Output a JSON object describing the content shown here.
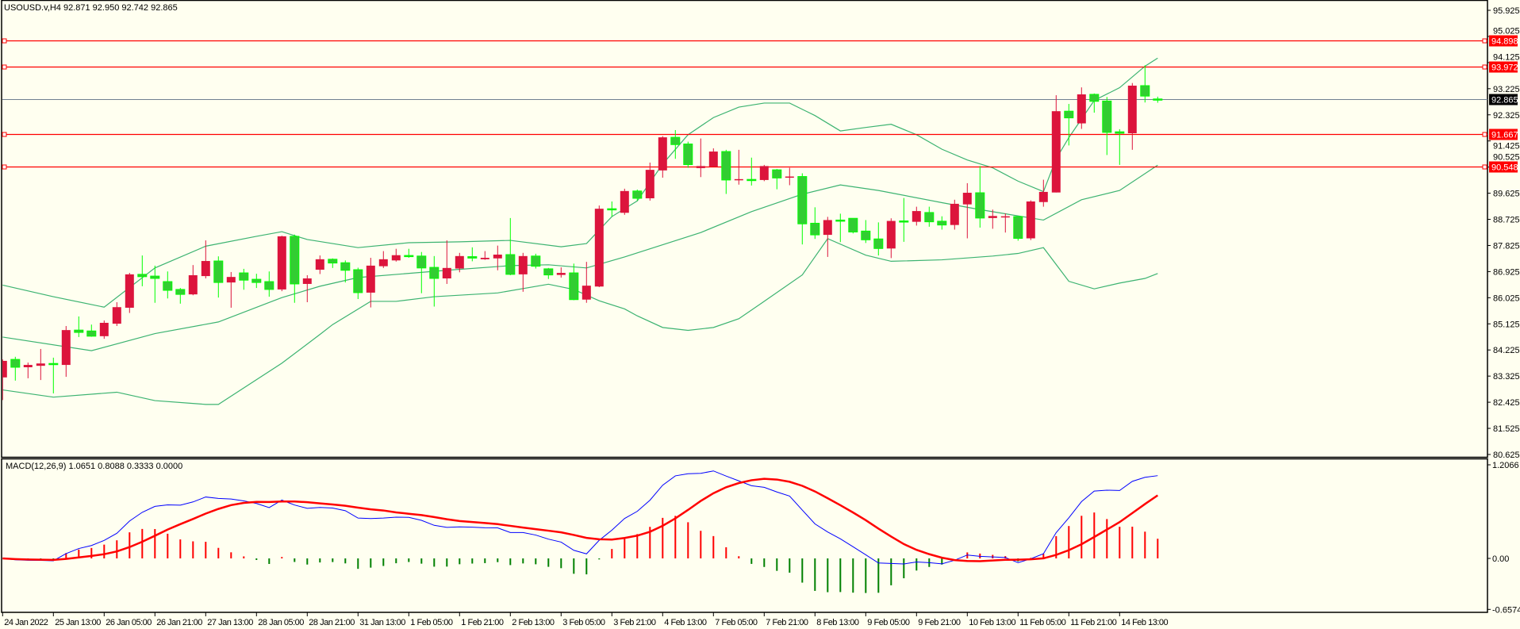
{
  "header": {
    "symbol_info": "USOUSD.v,H4  92.871 92.950 92.742 92.865"
  },
  "macd_header": {
    "label": "MACD(12,26,9) 1.0651 0.8088 0.3333 0.0000"
  },
  "colors": {
    "background": "#fffff0",
    "bull": "#dc143c",
    "bear": "#32cd32",
    "bear_border": "#00ff00",
    "bands": "#3cb371",
    "hline": "#ff0000",
    "price_line": "#708090",
    "macd": "#0000ff",
    "signal": "#ff0000",
    "hist_pos": "#ff0000",
    "hist_neg": "#008000"
  },
  "price_axis": {
    "ticks": [
      "95.925",
      "95.025",
      "94.125",
      "93.225",
      "92.325",
      "91.425",
      "90.525",
      "89.625",
      "88.725",
      "87.825",
      "86.925",
      "86.025",
      "85.125",
      "84.225",
      "83.325",
      "82.425",
      "81.525",
      "80.625"
    ]
  },
  "macd_axis": {
    "ticks": [
      "1.2066",
      "0.00",
      "-0.6574"
    ],
    "values": [
      1.2066,
      0,
      -0.6574
    ]
  },
  "horizontal_lines": [
    {
      "price": 94.898,
      "label": "94.898"
    },
    {
      "price": 93.972,
      "label": "93.972"
    },
    {
      "price": 91.667,
      "label": "91.667"
    },
    {
      "price": 90.548,
      "label": "90.548"
    }
  ],
  "current_price": {
    "price": 92.865,
    "label": "92.865"
  },
  "time_axis": {
    "labels": [
      "24 Jan 2022",
      "25 Jan 13:00",
      "26 Jan 05:00",
      "26 Jan 21:00",
      "27 Jan 13:00",
      "28 Jan 05:00",
      "28 Jan 21:00",
      "31 Jan 13:00",
      "1 Feb 05:00",
      "1 Feb 21:00",
      "2 Feb 13:00",
      "3 Feb 05:00",
      "3 Feb 21:00",
      "4 Feb 13:00",
      "7 Feb 05:00",
      "7 Feb 21:00",
      "8 Feb 13:00",
      "9 Feb 05:00",
      "9 Feb 21:00",
      "10 Feb 13:00",
      "11 Feb 05:00",
      "11 Feb 21:00",
      "14 Feb 13:00"
    ],
    "bars_per_label": 4
  },
  "chart_data": {
    "type": "candlestick",
    "timeframe": "H4",
    "ylim": [
      80.625,
      95.925
    ],
    "ohlc": [
      [
        83.28,
        83.9,
        82.5,
        83.85
      ],
      [
        83.9,
        83.99,
        83.17,
        83.63
      ],
      [
        83.63,
        83.79,
        83.25,
        83.71
      ],
      [
        83.68,
        84.26,
        83.19,
        83.76
      ],
      [
        83.76,
        83.96,
        82.73,
        83.72
      ],
      [
        83.71,
        85.05,
        83.3,
        84.91
      ],
      [
        84.91,
        85.38,
        84.67,
        84.83
      ],
      [
        84.88,
        85.1,
        84.68,
        84.7
      ],
      [
        84.7,
        85.24,
        84.61,
        85.16
      ],
      [
        85.13,
        85.87,
        85.05,
        85.7
      ],
      [
        85.68,
        86.88,
        85.5,
        86.83
      ],
      [
        86.83,
        87.48,
        86.42,
        86.75
      ],
      [
        86.77,
        87.13,
        85.85,
        86.69
      ],
      [
        86.58,
        86.93,
        86.0,
        86.28
      ],
      [
        86.31,
        86.36,
        85.82,
        86.14
      ],
      [
        86.14,
        87.15,
        86.11,
        86.8
      ],
      [
        86.77,
        88.0,
        86.69,
        87.29
      ],
      [
        87.29,
        87.45,
        86.03,
        86.55
      ],
      [
        86.55,
        86.91,
        85.68,
        86.74
      ],
      [
        86.88,
        87.02,
        86.3,
        86.63
      ],
      [
        86.66,
        86.85,
        86.36,
        86.55
      ],
      [
        86.58,
        86.93,
        86.06,
        86.31
      ],
      [
        86.31,
        88.16,
        86.25,
        88.14
      ],
      [
        88.14,
        88.2,
        85.85,
        86.5
      ],
      [
        86.5,
        86.8,
        85.87,
        86.69
      ],
      [
        86.99,
        87.48,
        86.84,
        87.35
      ],
      [
        87.35,
        87.38,
        87.05,
        87.22
      ],
      [
        87.23,
        87.31,
        86.55,
        86.97
      ],
      [
        86.99,
        87.06,
        85.98,
        86.2
      ],
      [
        86.2,
        87.4,
        85.69,
        87.13
      ],
      [
        87.11,
        87.63,
        87.05,
        87.35
      ],
      [
        87.31,
        87.71,
        87.27,
        87.49
      ],
      [
        87.48,
        87.71,
        87.4,
        87.44
      ],
      [
        87.46,
        87.6,
        86.18,
        87.05
      ],
      [
        87.07,
        87.46,
        85.72,
        86.69
      ],
      [
        86.69,
        88.0,
        86.5,
        87.05
      ],
      [
        87.03,
        87.57,
        86.9,
        87.46
      ],
      [
        87.44,
        87.76,
        87.28,
        87.39
      ],
      [
        87.35,
        87.63,
        87.33,
        87.4
      ],
      [
        87.38,
        87.82,
        86.97,
        87.51
      ],
      [
        87.51,
        88.77,
        86.8,
        86.83
      ],
      [
        86.83,
        87.57,
        86.23,
        87.46
      ],
      [
        87.46,
        87.54,
        87.03,
        87.11
      ],
      [
        87.02,
        87.05,
        86.67,
        86.81
      ],
      [
        86.81,
        87.07,
        86.72,
        86.88
      ],
      [
        86.88,
        87.2,
        85.94,
        85.96
      ],
      [
        85.96,
        87.26,
        85.85,
        86.44
      ],
      [
        86.41,
        89.2,
        86.39,
        89.09
      ],
      [
        89.09,
        89.34,
        88.82,
        89.05
      ],
      [
        88.95,
        89.78,
        88.88,
        89.7
      ],
      [
        89.7,
        89.75,
        89.37,
        89.45
      ],
      [
        89.45,
        90.68,
        89.37,
        90.43
      ],
      [
        90.41,
        91.59,
        90.16,
        91.55
      ],
      [
        91.55,
        91.8,
        90.81,
        91.3
      ],
      [
        91.32,
        91.4,
        90.5,
        90.61
      ],
      [
        90.49,
        91.51,
        90.18,
        90.56
      ],
      [
        90.54,
        91.17,
        90.54,
        91.06
      ],
      [
        91.06,
        91.12,
        89.6,
        90.08
      ],
      [
        90.08,
        91.12,
        89.92,
        90.11
      ],
      [
        90.1,
        90.85,
        89.89,
        90.08
      ],
      [
        90.08,
        90.6,
        90.04,
        90.56
      ],
      [
        90.43,
        90.46,
        89.76,
        90.15
      ],
      [
        90.18,
        90.5,
        89.9,
        90.2
      ],
      [
        90.2,
        90.31,
        87.86,
        88.57
      ],
      [
        88.59,
        89.14,
        88.05,
        88.19
      ],
      [
        88.19,
        88.81,
        87.43,
        88.7
      ],
      [
        88.7,
        88.92,
        87.94,
        88.67
      ],
      [
        88.76,
        88.76,
        88.24,
        88.29
      ],
      [
        88.32,
        88.7,
        87.91,
        88.02
      ],
      [
        88.05,
        88.62,
        87.48,
        87.72
      ],
      [
        87.72,
        88.76,
        87.39,
        88.67
      ],
      [
        88.67,
        89.46,
        87.95,
        88.64
      ],
      [
        88.64,
        89.16,
        88.51,
        89.01
      ],
      [
        88.96,
        89.16,
        88.47,
        88.64
      ],
      [
        88.66,
        88.83,
        88.37,
        88.53
      ],
      [
        88.53,
        89.4,
        88.37,
        89.26
      ],
      [
        89.24,
        89.97,
        88.07,
        89.64
      ],
      [
        89.64,
        90.56,
        88.44,
        88.77
      ],
      [
        88.77,
        89.06,
        88.4,
        88.84
      ],
      [
        88.81,
        88.93,
        88.27,
        88.83
      ],
      [
        88.82,
        88.82,
        87.99,
        88.07
      ],
      [
        88.07,
        89.38,
        88.01,
        89.34
      ],
      [
        89.32,
        90.09,
        89.16,
        89.67
      ],
      [
        89.65,
        93.0,
        89.65,
        92.45
      ],
      [
        92.45,
        92.7,
        91.27,
        92.22
      ],
      [
        92.03,
        93.27,
        91.84,
        93.03
      ],
      [
        93.03,
        93.06,
        92.4,
        92.79
      ],
      [
        92.8,
        92.94,
        90.94,
        91.72
      ],
      [
        91.74,
        91.83,
        90.6,
        91.69
      ],
      [
        91.69,
        93.42,
        91.12,
        93.33
      ],
      [
        93.33,
        94.03,
        92.75,
        92.97
      ],
      [
        92.871,
        92.95,
        92.742,
        92.865
      ]
    ],
    "bollinger": {
      "upper": [
        [
          0,
          86.46
        ],
        [
          4,
          86.06
        ],
        [
          8,
          85.7
        ],
        [
          12,
          87.05
        ],
        [
          16,
          87.8
        ],
        [
          20,
          88.14
        ],
        [
          22,
          88.3
        ],
        [
          24,
          88.03
        ],
        [
          28,
          87.75
        ],
        [
          32,
          87.92
        ],
        [
          36,
          87.95
        ],
        [
          40,
          88.0
        ],
        [
          44,
          87.78
        ],
        [
          46,
          87.89
        ],
        [
          48,
          88.82
        ],
        [
          50,
          89.36
        ],
        [
          52,
          90.63
        ],
        [
          54,
          91.64
        ],
        [
          56,
          92.23
        ],
        [
          58,
          92.59
        ],
        [
          60,
          92.73
        ],
        [
          62,
          92.73
        ],
        [
          64,
          92.3
        ],
        [
          66,
          91.77
        ],
        [
          68,
          91.89
        ],
        [
          70,
          92.0
        ],
        [
          72,
          91.64
        ],
        [
          74,
          91.14
        ],
        [
          76,
          90.77
        ],
        [
          78,
          90.5
        ],
        [
          80,
          90.04
        ],
        [
          82,
          89.68
        ],
        [
          83,
          90.81
        ],
        [
          84,
          91.54
        ],
        [
          86,
          92.82
        ],
        [
          88,
          93.26
        ],
        [
          90,
          94.0
        ],
        [
          91,
          94.28
        ]
      ],
      "middle": [
        [
          0,
          84.67
        ],
        [
          7,
          84.2
        ],
        [
          12,
          84.79
        ],
        [
          17,
          85.19
        ],
        [
          22,
          86.03
        ],
        [
          25,
          86.42
        ],
        [
          28,
          86.72
        ],
        [
          35,
          86.97
        ],
        [
          40,
          87.13
        ],
        [
          43,
          87.16
        ],
        [
          46,
          87.05
        ],
        [
          49,
          87.43
        ],
        [
          55,
          88.27
        ],
        [
          59,
          88.99
        ],
        [
          63,
          89.59
        ],
        [
          66,
          89.91
        ],
        [
          69,
          89.72
        ],
        [
          74,
          89.3
        ],
        [
          77,
          89.06
        ],
        [
          82,
          88.7
        ],
        [
          85,
          89.4
        ],
        [
          88,
          89.72
        ],
        [
          91,
          90.59
        ]
      ],
      "lower": [
        [
          0,
          82.85
        ],
        [
          4,
          82.6
        ],
        [
          9,
          82.77
        ],
        [
          12,
          82.48
        ],
        [
          16,
          82.35
        ],
        [
          17,
          82.35
        ],
        [
          22,
          83.77
        ],
        [
          25,
          84.76
        ],
        [
          26,
          85.1
        ],
        [
          29,
          85.9
        ],
        [
          31,
          85.9
        ],
        [
          34,
          86.06
        ],
        [
          39,
          86.19
        ],
        [
          43,
          86.49
        ],
        [
          45,
          86.31
        ],
        [
          47,
          85.92
        ],
        [
          49,
          85.64
        ],
        [
          50,
          85.4
        ],
        [
          52,
          85.0
        ],
        [
          54,
          84.9
        ],
        [
          56,
          85.0
        ],
        [
          58,
          85.3
        ],
        [
          60,
          85.9
        ],
        [
          63,
          86.81
        ],
        [
          65,
          88.06
        ],
        [
          68,
          87.49
        ],
        [
          70,
          87.28
        ],
        [
          74,
          87.33
        ],
        [
          78,
          87.46
        ],
        [
          80,
          87.55
        ],
        [
          82,
          87.75
        ],
        [
          84,
          86.59
        ],
        [
          86,
          86.33
        ],
        [
          88,
          86.53
        ],
        [
          90,
          86.69
        ],
        [
          91,
          86.86
        ]
      ]
    },
    "macd_params": {
      "fast": 12,
      "slow": 26,
      "signal": 9
    }
  }
}
